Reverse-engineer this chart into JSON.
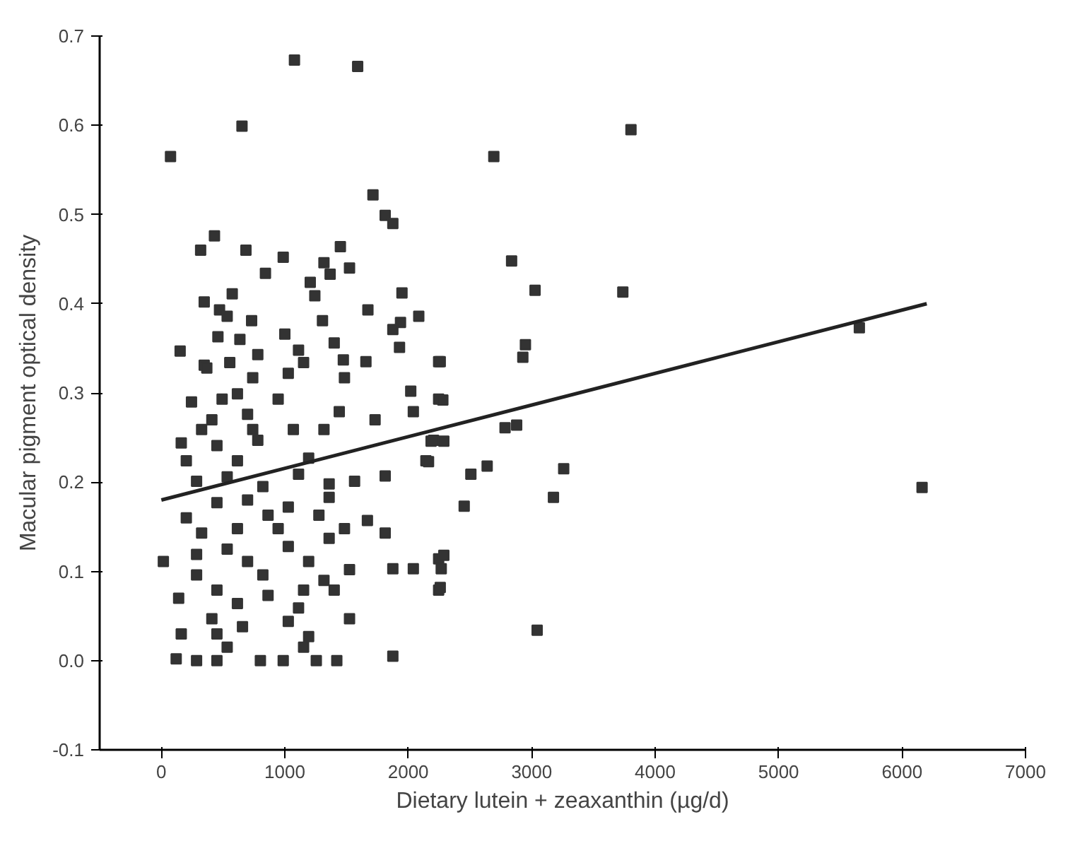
{
  "chart_data": {
    "type": "scatter",
    "xlabel": "Dietary lutein + zeaxanthin (µg/d)",
    "ylabel": "Macular pigment optical density",
    "xlim": [
      -500,
      7000
    ],
    "ylim": [
      -0.1,
      0.7
    ],
    "xticks": [
      0,
      1000,
      2000,
      3000,
      4000,
      5000,
      6000,
      7000
    ],
    "yticks": [
      {
        "value": -0.1,
        "label": "-0.1"
      },
      {
        "value": 0,
        "label": "0.0"
      },
      0.1,
      0.2,
      0.3,
      0.4,
      0.5,
      0.6,
      0.7
    ],
    "grid": false,
    "series": [
      {
        "color": "#333333",
        "marker": "square",
        "x": [
          1078,
          1590,
          653,
          74,
          1714,
          1813,
          1875,
          430,
          318,
          685,
          987,
          1450,
          1317,
          843,
          1367,
          1524,
          1206,
          1243,
          1949,
          574,
          347,
          471,
          533,
          1673,
          2085,
          1937,
          1875,
          731,
          1305,
          458,
          636,
          1000,
          1929,
          152,
          347,
          781,
          1111,
          1400,
          1474,
          1657,
          2246,
          554,
          1152,
          368,
          740,
          1028,
          1483,
          244,
          492,
          946,
          2020,
          2246,
          409,
          698,
          1441,
          1731,
          2041,
          161,
          450,
          781,
          1069,
          1317,
          2205,
          202,
          616,
          1193,
          2143,
          285,
          533,
          822,
          1111,
          1813,
          1359,
          1565,
          202,
          450,
          698,
          1028,
          1359,
          1276,
          864,
          326,
          616,
          946,
          1483,
          1669,
          1813,
          1359,
          16,
          285,
          533,
          698,
          1028,
          1193,
          1524,
          1875,
          2041,
          2246,
          2246,
          285,
          822,
          1317,
          450,
          140,
          616,
          864,
          1152,
          1400,
          1111,
          409,
          657,
          1028,
          1524,
          161,
          450,
          1193,
          533,
          1152,
          120,
          285,
          450,
          802,
          987,
          1255,
          1421,
          1875,
          740,
          326,
          616,
          3804,
          2693,
          2837,
          3027,
          3738,
          2949,
          2928,
          2259,
          2280,
          5654,
          2784,
          2878,
          2185,
          2288,
          2164,
          2507,
          2639,
          3259,
          3176,
          2453,
          6162,
          2288,
          2267,
          2259,
          3044
        ],
        "values": [
          0.673,
          0.666,
          0.599,
          0.565,
          0.522,
          0.499,
          0.49,
          0.476,
          0.46,
          0.46,
          0.452,
          0.464,
          0.446,
          0.434,
          0.433,
          0.44,
          0.424,
          0.409,
          0.412,
          0.411,
          0.402,
          0.393,
          0.386,
          0.393,
          0.386,
          0.379,
          0.371,
          0.381,
          0.381,
          0.363,
          0.36,
          0.366,
          0.351,
          0.347,
          0.331,
          0.343,
          0.348,
          0.356,
          0.337,
          0.335,
          0.335,
          0.334,
          0.334,
          0.328,
          0.317,
          0.322,
          0.317,
          0.29,
          0.293,
          0.293,
          0.302,
          0.293,
          0.27,
          0.276,
          0.279,
          0.27,
          0.279,
          0.244,
          0.241,
          0.247,
          0.259,
          0.259,
          0.247,
          0.224,
          0.224,
          0.227,
          0.224,
          0.201,
          0.206,
          0.195,
          0.209,
          0.207,
          0.198,
          0.201,
          0.16,
          0.177,
          0.18,
          0.172,
          0.183,
          0.163,
          0.163,
          0.143,
          0.148,
          0.148,
          0.148,
          0.157,
          0.143,
          0.137,
          0.111,
          0.119,
          0.125,
          0.111,
          0.128,
          0.111,
          0.102,
          0.103,
          0.103,
          0.114,
          0.079,
          0.096,
          0.096,
          0.09,
          0.079,
          0.07,
          0.064,
          0.073,
          0.079,
          0.079,
          0.059,
          0.047,
          0.038,
          0.044,
          0.047,
          0.03,
          0.03,
          0.027,
          0.015,
          0.015,
          0.002,
          0,
          0,
          0,
          0,
          0,
          0,
          0.005,
          0.259,
          0.259,
          0.299,
          0.595,
          0.565,
          0.448,
          0.415,
          0.413,
          0.354,
          0.34,
          0.335,
          0.292,
          0.373,
          0.261,
          0.264,
          0.246,
          0.246,
          0.223,
          0.209,
          0.218,
          0.215,
          0.183,
          0.173,
          0.194,
          0.118,
          0.103,
          0.082,
          0.034
        ]
      },
      {
        "type": "line",
        "color": "#222222",
        "line_style": "solid",
        "x": [
          0,
          6200
        ],
        "values": [
          0.18,
          0.4
        ]
      }
    ]
  }
}
